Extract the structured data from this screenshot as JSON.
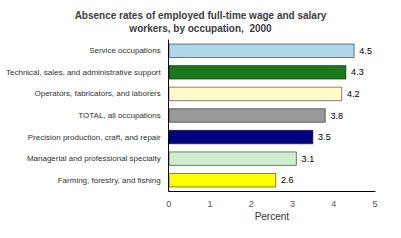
{
  "chart_data": {
    "type": "bar",
    "orientation": "horizontal",
    "title": "Absence rates of employed full-time wage and salary\nworkers, by occupation,  2000",
    "categories": [
      "Farming, forestry, and fishing",
      "Managerial and professional specialty",
      "Precision production, craft, and repair",
      "TOTAL, all occupations",
      "Operators, fabricators, and laborers",
      "Technical, sales, and administrative support",
      "Service occupations"
    ],
    "values": [
      2.6,
      3.1,
      3.5,
      3.8,
      4.2,
      4.3,
      4.5
    ],
    "colors": [
      "#ffff00",
      "#cceecc",
      "#000080",
      "#999999",
      "#ffffcc",
      "#1a7a1a",
      "#add8e6"
    ],
    "xlabel": "Percent",
    "xlim": [
      0,
      5
    ],
    "xticks": [
      0,
      1,
      2,
      3,
      4,
      5
    ],
    "data_labels": true,
    "grid": false
  }
}
